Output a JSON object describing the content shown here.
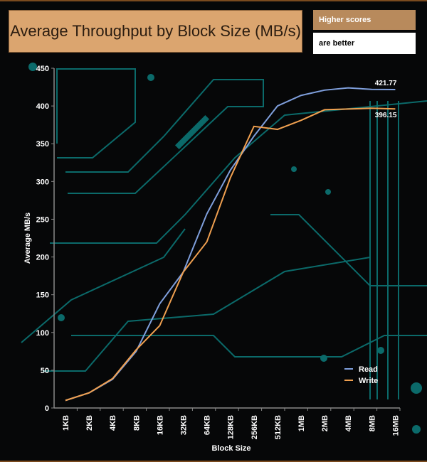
{
  "header": {
    "title": "Average Throughput by Block Size (MB/s)",
    "note_line1": "Higher scores",
    "note_line2": "are better"
  },
  "colors": {
    "read": "#7f9fdc",
    "write": "#f0a050",
    "trace": "#0b6a6a",
    "title_bg": "#dba56f"
  },
  "chart_data": {
    "type": "line",
    "title": "Average Throughput by Block Size (MB/s)",
    "xlabel": "Block Size",
    "ylabel": "Average MB/s",
    "ylim": [
      0,
      450
    ],
    "yticks": [
      0,
      50,
      100,
      150,
      200,
      250,
      300,
      350,
      400,
      450
    ],
    "categories": [
      "1KB",
      "2KB",
      "4KB",
      "8KB",
      "16KB",
      "32KB",
      "64KB",
      "128KB",
      "256KB",
      "512KB",
      "1MB",
      "2MB",
      "4MB",
      "8MB",
      "16MB"
    ],
    "series": [
      {
        "name": "Read",
        "values": [
          10,
          20,
          38,
          75,
          138,
          180,
          257,
          315,
          360,
          400,
          414,
          421,
          424,
          422,
          421.77
        ],
        "end_label": "421.77"
      },
      {
        "name": "Write",
        "values": [
          10,
          20,
          39,
          77,
          109,
          180,
          220,
          305,
          373,
          369,
          381,
          395,
          396,
          397,
          396.15
        ],
        "end_label": "396.15"
      }
    ],
    "legend": "bottom-right",
    "grid": false
  }
}
